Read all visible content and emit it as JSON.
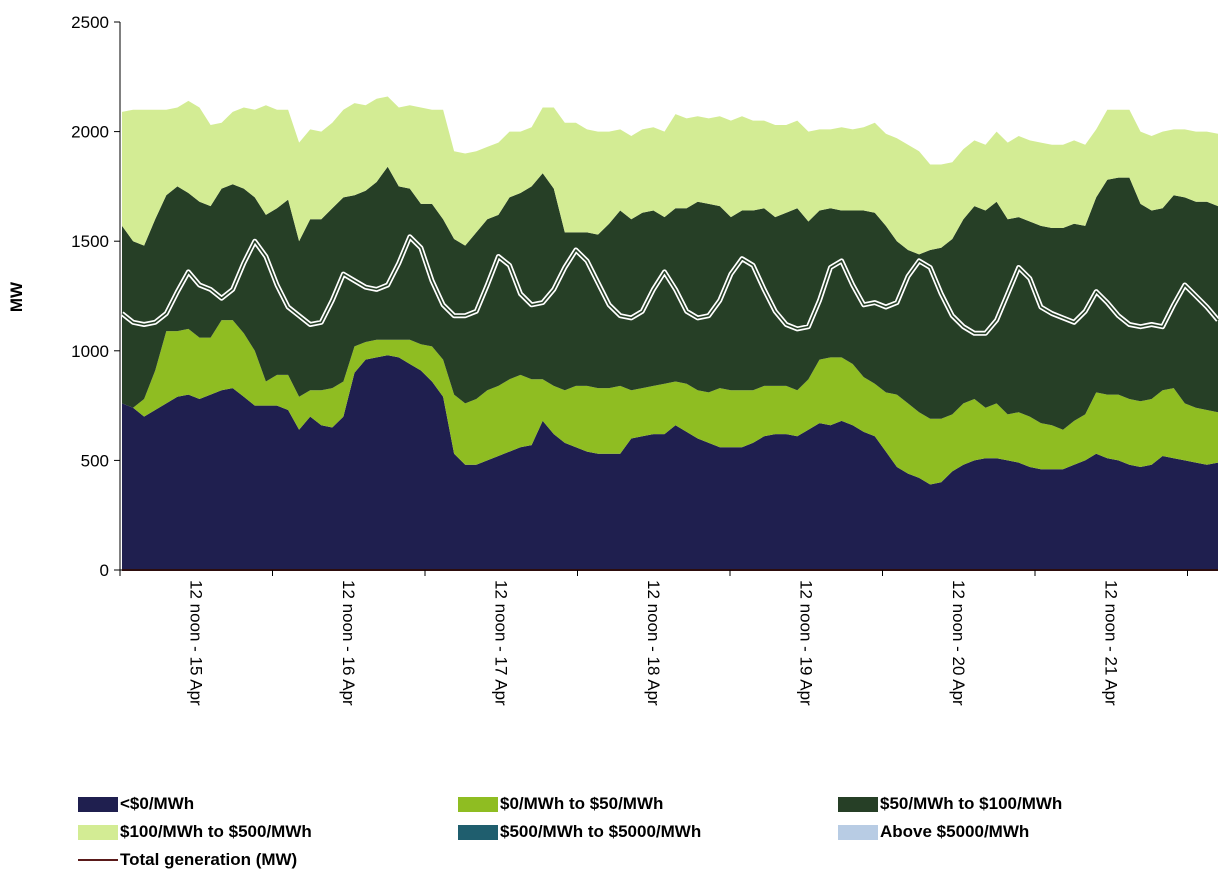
{
  "chart_data": {
    "type": "area",
    "stacked": true,
    "title": "",
    "xlabel": "",
    "ylabel": "MW",
    "ylim": [
      0,
      2500
    ],
    "yticks": [
      0,
      500,
      1000,
      1500,
      2000,
      2500
    ],
    "x_range": [
      "14 Apr 04:00",
      "21 Apr 23:30"
    ],
    "x_step_hours": 2,
    "x_tick_labels": [
      "12 noon - 15 Apr",
      "12 noon - 16 Apr",
      "12 noon - 17 Apr",
      "12 noon - 18 Apr",
      "12 noon - 19 Apr",
      "12 noon - 20 Apr",
      "12 noon - 21 Apr"
    ],
    "grid": false,
    "legend_position": "bottom",
    "colors": {
      "lt0": "#1f1f4f",
      "b0_50": "#8fbd22",
      "b50_100": "#263f26",
      "b100_500": "#d3ec94",
      "b500_5000": "#1f5e6e",
      "above5000": "#b8cce4",
      "total": "#5a1a1a",
      "demand": "#ffffff"
    },
    "series": [
      {
        "name": "<$0/MWh",
        "key": "lt0",
        "values": [
          760,
          740,
          700,
          730,
          760,
          790,
          800,
          780,
          800,
          820,
          830,
          790,
          750,
          750,
          750,
          730,
          640,
          700,
          660,
          650,
          700,
          900,
          960,
          970,
          980,
          970,
          940,
          910,
          860,
          790,
          530,
          480,
          480,
          500,
          520,
          540,
          560,
          570,
          680,
          620,
          580,
          560,
          540,
          530,
          530,
          530,
          600,
          610,
          620,
          620,
          660,
          630,
          600,
          580,
          560,
          560,
          560,
          580,
          610,
          620,
          620,
          610,
          640,
          670,
          660,
          680,
          660,
          630,
          610,
          540,
          470,
          440,
          420,
          390,
          400,
          450,
          480,
          500,
          510,
          510,
          500,
          490,
          470,
          460,
          460,
          460,
          480,
          500,
          530,
          510,
          500,
          480,
          470,
          480,
          520,
          510,
          500,
          490,
          480,
          490
        ]
      },
      {
        "name": "$0/MWh to $50/MWh",
        "values": [
          0,
          0,
          80,
          180,
          330,
          300,
          300,
          280,
          260,
          320,
          310,
          290,
          250,
          110,
          140,
          160,
          150,
          120,
          160,
          180,
          160,
          120,
          80,
          80,
          70,
          80,
          110,
          120,
          160,
          170,
          270,
          280,
          300,
          320,
          320,
          330,
          330,
          300,
          190,
          220,
          240,
          280,
          300,
          300,
          300,
          310,
          220,
          220,
          220,
          230,
          200,
          220,
          220,
          230,
          270,
          260,
          260,
          240,
          230,
          220,
          220,
          210,
          230,
          290,
          310,
          290,
          280,
          250,
          240,
          270,
          330,
          320,
          300,
          300,
          290,
          260,
          280,
          280,
          230,
          250,
          210,
          230,
          230,
          210,
          200,
          180,
          200,
          210,
          280,
          290,
          300,
          300,
          300,
          300,
          300,
          320,
          260,
          250,
          250,
          230
        ]
      },
      {
        "name": "$50/MWh to $100/MWh",
        "values": [
          810,
          760,
          700,
          690,
          620,
          660,
          620,
          620,
          600,
          600,
          620,
          660,
          700,
          760,
          760,
          800,
          710,
          780,
          780,
          820,
          840,
          690,
          690,
          720,
          790,
          700,
          690,
          640,
          650,
          640,
          710,
          720,
          760,
          780,
          780,
          830,
          830,
          880,
          940,
          900,
          720,
          700,
          700,
          700,
          750,
          800,
          780,
          800,
          800,
          760,
          790,
          800,
          860,
          860,
          830,
          790,
          820,
          820,
          810,
          770,
          790,
          830,
          720,
          680,
          680,
          670,
          700,
          760,
          780,
          760,
          700,
          700,
          720,
          770,
          780,
          800,
          840,
          880,
          900,
          920,
          890,
          890,
          890,
          900,
          900,
          920,
          900,
          860,
          890,
          980,
          990,
          1010,
          900,
          860,
          830,
          880,
          940,
          940,
          950,
          940
        ]
      },
      {
        "name": "$100/MWh to $500/MWh",
        "values": [
          520,
          600,
          620,
          500,
          390,
          360,
          420,
          430,
          370,
          300,
          330,
          370,
          400,
          500,
          450,
          410,
          450,
          410,
          400,
          390,
          400,
          420,
          390,
          380,
          320,
          360,
          380,
          440,
          430,
          500,
          400,
          420,
          370,
          330,
          330,
          300,
          280,
          270,
          300,
          370,
          500,
          500,
          470,
          470,
          420,
          370,
          380,
          380,
          380,
          390,
          430,
          410,
          390,
          390,
          410,
          440,
          430,
          410,
          400,
          420,
          400,
          400,
          410,
          370,
          360,
          380,
          370,
          380,
          410,
          420,
          470,
          480,
          470,
          390,
          380,
          350,
          320,
          300,
          300,
          320,
          350,
          370,
          370,
          380,
          380,
          380,
          380,
          370,
          310,
          320,
          310,
          310,
          330,
          340,
          350,
          300,
          310,
          320,
          320,
          330
        ]
      },
      {
        "name": "$500/MWh to $5000/MWh",
        "values": [
          0,
          0,
          0,
          0,
          0,
          0,
          0,
          0,
          0,
          0,
          0,
          0,
          0,
          0,
          0,
          0,
          0,
          0,
          0,
          0,
          0,
          0,
          0,
          0,
          0,
          0,
          0,
          0,
          0,
          0,
          0,
          0,
          0,
          0,
          0,
          0,
          0,
          0,
          0,
          0,
          0,
          0,
          0,
          0,
          0,
          0,
          0,
          0,
          0,
          0,
          0,
          0,
          0,
          0,
          0,
          0,
          0,
          0,
          0,
          0,
          0,
          0,
          0,
          0,
          0,
          0,
          0,
          0,
          0,
          0,
          0,
          0,
          0,
          0,
          0,
          0,
          0,
          0,
          0,
          0,
          0,
          0,
          0,
          0,
          0,
          0,
          0,
          0,
          0,
          0,
          0,
          0,
          0,
          0,
          0,
          0,
          0,
          0,
          0,
          0
        ]
      },
      {
        "name": "Above $5000/MWh",
        "values": [
          0,
          0,
          0,
          0,
          0,
          0,
          0,
          0,
          0,
          0,
          0,
          0,
          0,
          0,
          0,
          0,
          0,
          0,
          0,
          0,
          0,
          0,
          0,
          0,
          0,
          0,
          0,
          0,
          0,
          0,
          0,
          0,
          0,
          0,
          0,
          0,
          0,
          0,
          0,
          0,
          0,
          0,
          0,
          0,
          0,
          0,
          0,
          0,
          0,
          0,
          0,
          0,
          0,
          0,
          0,
          0,
          0,
          0,
          0,
          0,
          0,
          0,
          0,
          0,
          0,
          0,
          0,
          0,
          0,
          0,
          0,
          0,
          0,
          0,
          0,
          0,
          0,
          0,
          0,
          0,
          0,
          0,
          0,
          0,
          0,
          0,
          0,
          0,
          0,
          0,
          0,
          0,
          0,
          0,
          0,
          0,
          0,
          0,
          0,
          0
        ]
      },
      {
        "name": "Total generation (MW)",
        "values": [
          0,
          0,
          0,
          0,
          0,
          0,
          0,
          0,
          0,
          0,
          0,
          0,
          0,
          0,
          0,
          0,
          0,
          0,
          0,
          0,
          0,
          0,
          0,
          0,
          0,
          0,
          0,
          0,
          0,
          0,
          0,
          0,
          0,
          0,
          0,
          0,
          0,
          0,
          0,
          0,
          0,
          0,
          0,
          0,
          0,
          0,
          0,
          0,
          0,
          0,
          0,
          0,
          0,
          0,
          0,
          0,
          0,
          0,
          0,
          0,
          0,
          0,
          0,
          0,
          0,
          0,
          0,
          0,
          0,
          0,
          0,
          0,
          0,
          0,
          0,
          0,
          0,
          0,
          0,
          0,
          0,
          0,
          0,
          0,
          0,
          0,
          0,
          0,
          0,
          0,
          0,
          0,
          0,
          0,
          0,
          0,
          0,
          0,
          0,
          0
        ]
      }
    ],
    "demand_line": [
      1170,
      1130,
      1120,
      1130,
      1170,
      1270,
      1360,
      1300,
      1280,
      1240,
      1280,
      1400,
      1500,
      1430,
      1300,
      1200,
      1160,
      1120,
      1130,
      1230,
      1350,
      1320,
      1290,
      1280,
      1300,
      1400,
      1520,
      1470,
      1320,
      1210,
      1160,
      1160,
      1180,
      1300,
      1430,
      1390,
      1260,
      1210,
      1220,
      1280,
      1380,
      1460,
      1410,
      1310,
      1210,
      1160,
      1150,
      1180,
      1280,
      1360,
      1280,
      1180,
      1150,
      1160,
      1230,
      1350,
      1420,
      1390,
      1280,
      1180,
      1120,
      1100,
      1110,
      1230,
      1380,
      1410,
      1300,
      1210,
      1220,
      1200,
      1220,
      1340,
      1410,
      1380,
      1260,
      1160,
      1110,
      1080,
      1080,
      1140,
      1260,
      1380,
      1330,
      1200,
      1170,
      1150,
      1130,
      1180,
      1270,
      1220,
      1160,
      1120,
      1110,
      1120,
      1110,
      1210,
      1300,
      1250,
      1200,
      1140
    ]
  }
}
